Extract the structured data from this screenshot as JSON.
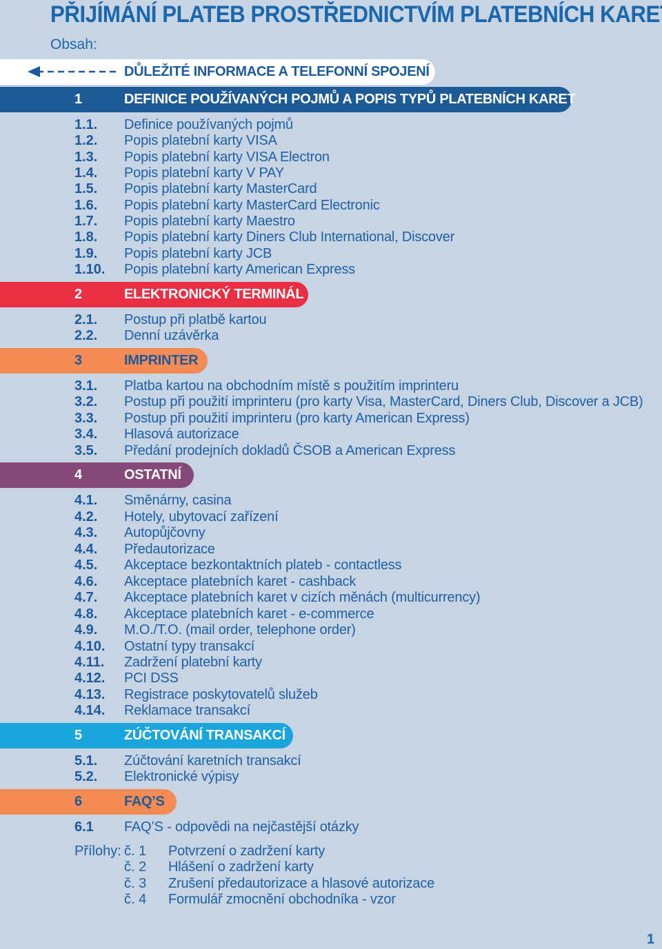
{
  "title": "PŘIJÍMÁNÍ PLATEB PROSTŘEDNICTVÍM PLATEBNÍCH KARET",
  "contents_label": "Obsah:",
  "important": {
    "text": "DŮLEŽITÉ INFORMACE A TELEFONNÍ SPOJENÍ"
  },
  "sections": [
    {
      "num": "1",
      "title": "DEFINICE POUŽÍVANÝCH POJMŮ A POPIS TYPŮ PLATEBNÍCH KARET",
      "color": "#1d5b96",
      "items": [
        {
          "num": "1.1.",
          "text": "Definice používaných pojmů"
        },
        {
          "num": "1.2.",
          "text": "Popis platební karty VISA"
        },
        {
          "num": "1.3.",
          "text": "Popis platební karty VISA Electron"
        },
        {
          "num": "1.4.",
          "text": "Popis platební karty V PAY"
        },
        {
          "num": "1.5.",
          "text": "Popis platební karty MasterCard"
        },
        {
          "num": "1.6.",
          "text": "Popis platební karty MasterCard Electronic"
        },
        {
          "num": "1.7.",
          "text": "Popis platební karty Maestro"
        },
        {
          "num": "1.8.",
          "text": "Popis platební karty Diners Club International, Discover"
        },
        {
          "num": "1.9.",
          "text": "Popis platební karty JCB"
        },
        {
          "num": "1.10.",
          "text": "Popis platební karty American Express"
        }
      ]
    },
    {
      "num": "2",
      "title": "ELEKTRONICKÝ TERMINÁL",
      "color": "#ea2e43",
      "items": [
        {
          "num": "2.1.",
          "text": "Postup při platbě kartou"
        },
        {
          "num": "2.2.",
          "text": "Denní uzávěrka"
        }
      ]
    },
    {
      "num": "3",
      "title": "IMPRINTER",
      "color": "#f58b54",
      "items": [
        {
          "num": "3.1.",
          "text": "Platba kartou na obchodním místě s použitím imprinteru"
        },
        {
          "num": "3.2.",
          "text": "Postup při použití imprinteru (pro karty Visa, MasterCard, Diners Club, Discover a JCB)"
        },
        {
          "num": "3.3.",
          "text": "Postup při použití imprinteru (pro karty American Express)"
        },
        {
          "num": "3.4.",
          "text": "Hlasová autorizace"
        },
        {
          "num": "3.5.",
          "text": "Předání prodejních dokladů ČSOB a American Express"
        }
      ]
    },
    {
      "num": "4",
      "title": "OSTATNÍ",
      "color": "#844978",
      "items": [
        {
          "num": "4.1.",
          "text": "Směnárny, casina"
        },
        {
          "num": "4.2.",
          "text": "Hotely, ubytovací zařízení"
        },
        {
          "num": "4.3.",
          "text": "Autopůjčovny"
        },
        {
          "num": "4.4.",
          "text": "Předautorizace"
        },
        {
          "num": "4.5.",
          "text": "Akceptace bezkontaktních plateb - contactless"
        },
        {
          "num": "4.6.",
          "text": "Akceptace platebních karet - cashback"
        },
        {
          "num": "4.7.",
          "text": "Akceptace platebních karet v cizích měnách (multicurrency)"
        },
        {
          "num": "4.8.",
          "text": "Akceptace platebních karet - e-commerce"
        },
        {
          "num": "4.9.",
          "text": "M.O./T.O. (mail order, telephone order)"
        },
        {
          "num": "4.10.",
          "text": "Ostatní typy transakcí"
        },
        {
          "num": "4.11.",
          "text": "Zadržení platební karty"
        },
        {
          "num": "4.12.",
          "text": "PCI DSS"
        },
        {
          "num": "4.13.",
          "text": "Registrace poskytovatelů služeb"
        },
        {
          "num": "4.14.",
          "text": "Reklamace transakcí"
        }
      ]
    },
    {
      "num": "5",
      "title": "ZÚČTOVÁNÍ TRANSAKCÍ",
      "color": "#1aa5dd",
      "items": [
        {
          "num": "5.1.",
          "text": "Zúčtování karetních transakcí"
        },
        {
          "num": "5.2.",
          "text": "Elektronické výpisy"
        }
      ]
    },
    {
      "num": "6",
      "title": "FAQ’S",
      "color": "#f58b54",
      "items": [
        {
          "num": "6.1",
          "text": "FAQ’S - odpovědi na nejčastější otázky"
        }
      ]
    }
  ],
  "attachments": {
    "label": "Přílohy:",
    "items": [
      {
        "num": "č. 1",
        "text": "Potvrzení o zadržení karty"
      },
      {
        "num": "č. 2",
        "text": "Hlášení o zadržení karty"
      },
      {
        "num": "č. 3",
        "text": "Zrušení předautorizace a hlasové autorizace"
      },
      {
        "num": "č. 4",
        "text": "Formulář zmocnění obchodníka - vzor"
      }
    ]
  },
  "page_number": "1"
}
